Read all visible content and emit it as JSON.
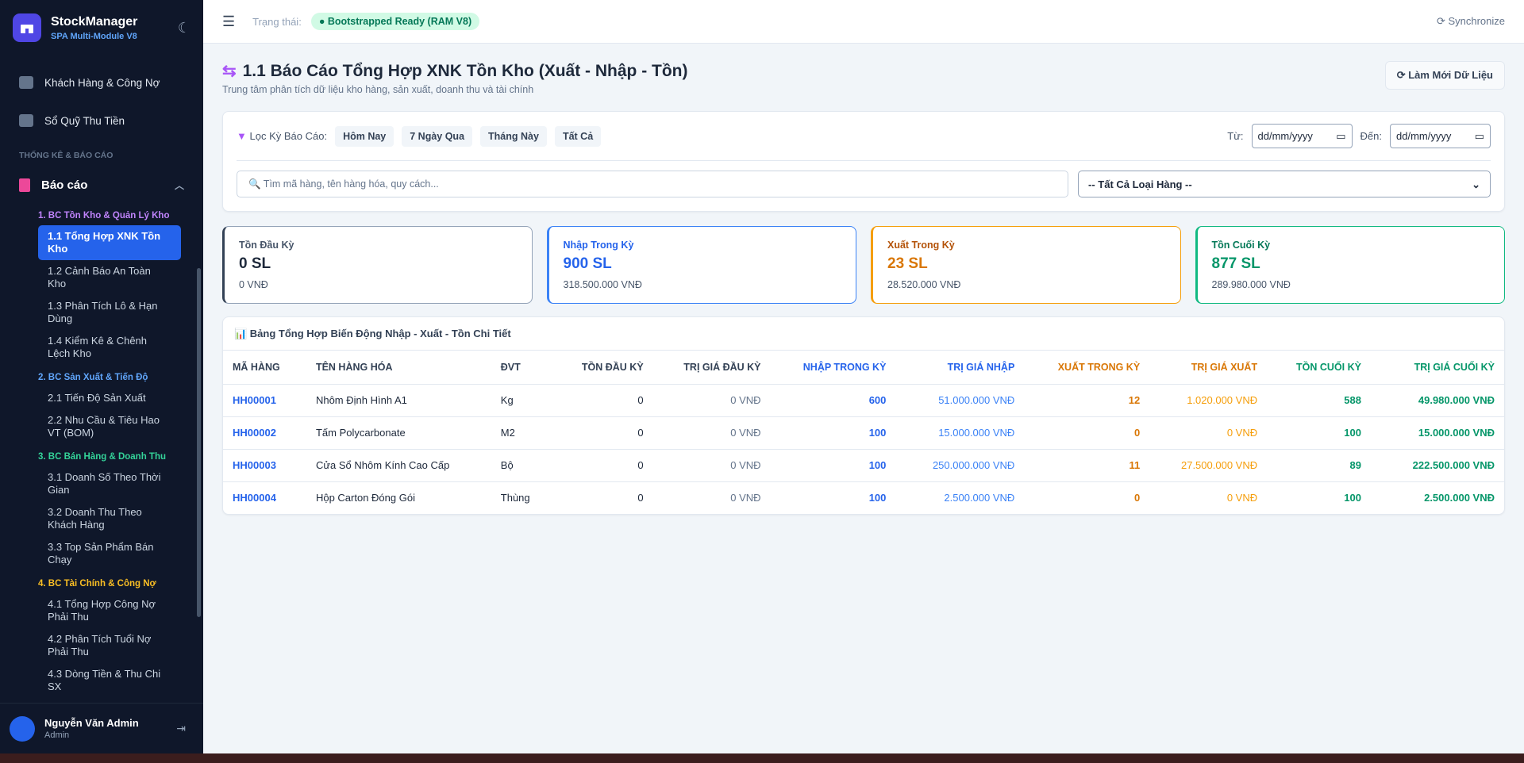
{
  "sidebar": {
    "brand": "StockManager",
    "subtitle": "SPA Multi-Module V8",
    "menu": [
      "Khách Hàng & Công Nợ",
      "Sổ Quỹ Thu Tiền"
    ],
    "section": "THỐNG KÊ & BÁO CÁO",
    "group": "Báo cáo",
    "subgroups": [
      {
        "title": "1. BC Tồn Kho & Quản Lý Kho",
        "items": [
          "1.1 Tổng Hợp XNK Tồn Kho",
          "1.2 Cảnh Báo An Toàn Kho",
          "1.3 Phân Tích Lô & Hạn Dùng",
          "1.4 Kiểm Kê & Chênh Lệch Kho"
        ]
      },
      {
        "title": "2. BC Sản Xuất & Tiến Độ",
        "items": [
          "2.1 Tiến Độ Sản Xuất",
          "2.2 Nhu Cầu & Tiêu Hao VT (BOM)"
        ]
      },
      {
        "title": "3. BC Bán Hàng & Doanh Thu",
        "items": [
          "3.1 Doanh Số Theo Thời Gian",
          "3.2 Doanh Thu Theo Khách Hàng",
          "3.3 Top Sản Phẩm Bán Chạy"
        ]
      },
      {
        "title": "4. BC Tài Chính & Công Nợ",
        "items": [
          "4.1 Tổng Hợp Công Nợ Phải Thu",
          "4.2 Phân Tích Tuổi Nợ Phải Thu",
          "4.3 Dòng Tiền & Thu Chi SX"
        ]
      }
    ],
    "user": {
      "name": "Nguyễn Văn Admin",
      "role": "Admin"
    }
  },
  "topbar": {
    "status_label": "Trạng thái:",
    "status": "Bootstrapped Ready (RAM V8)",
    "sync": "Synchronize"
  },
  "page": {
    "title": "1.1 Báo Cáo Tổng Hợp XNK Tồn Kho (Xuất - Nhập - Tồn)",
    "subtitle": "Trung tâm phân tích dữ liệu kho hàng, sản xuất, doanh thu và tài chính",
    "refresh": "Làm Mới Dữ Liệu"
  },
  "filters": {
    "label": "Lọc Kỳ Báo Cáo:",
    "presets": [
      "Hôm Nay",
      "7 Ngày Qua",
      "Tháng Này",
      "Tất Cả"
    ],
    "from_label": "Từ:",
    "to_label": "Đến:",
    "date_placeholder": "dd/mm/yyyy",
    "search_placeholder": "🔍 Tìm mã hàng, tên hàng hóa, quy cách...",
    "category": "-- Tất Cả Loại Hàng --"
  },
  "cards": [
    {
      "label": "Tồn Đầu Kỳ",
      "qty": "0 SL",
      "amount": "0 VNĐ"
    },
    {
      "label": "Nhập Trong Kỳ",
      "qty": "900 SL",
      "amount": "318.500.000 VNĐ"
    },
    {
      "label": "Xuất Trong Kỳ",
      "qty": "23 SL",
      "amount": "28.520.000 VNĐ"
    },
    {
      "label": "Tồn Cuối Kỳ",
      "qty": "877 SL",
      "amount": "289.980.000 VNĐ"
    }
  ],
  "table": {
    "title": "📊 Bảng Tổng Hợp Biến Động Nhập - Xuất - Tồn Chi Tiết",
    "columns": [
      "MÃ HÀNG",
      "TÊN HÀNG HÓA",
      "ĐVT",
      "TỒN ĐẦU KỲ",
      "TRỊ GIÁ ĐẦU KỲ",
      "NHẬP TRONG KỲ",
      "TRỊ GIÁ NHẬP",
      "XUẤT TRONG KỲ",
      "TRỊ GIÁ XUẤT",
      "TỒN CUỐI KỲ",
      "TRỊ GIÁ CUỐI KỲ"
    ],
    "rows": [
      [
        "HH00001",
        "Nhôm Định Hình A1",
        "Kg",
        0,
        "0 VNĐ",
        600,
        "51.000.000 VNĐ",
        12,
        "1.020.000 VNĐ",
        588,
        "49.980.000 VNĐ"
      ],
      [
        "HH00002",
        "Tấm Polycarbonate",
        "M2",
        0,
        "0 VNĐ",
        100,
        "15.000.000 VNĐ",
        0,
        "0 VNĐ",
        100,
        "15.000.000 VNĐ"
      ],
      [
        "HH00003",
        "Cửa Sổ Nhôm Kính Cao Cấp",
        "Bộ",
        0,
        "0 VNĐ",
        100,
        "250.000.000 VNĐ",
        11,
        "27.500.000 VNĐ",
        89,
        "222.500.000 VNĐ"
      ],
      [
        "HH00004",
        "Hộp Carton Đóng Gói",
        "Thùng",
        0,
        "0 VNĐ",
        100,
        "2.500.000 VNĐ",
        0,
        "0 VNĐ",
        100,
        "2.500.000 VNĐ"
      ]
    ]
  }
}
